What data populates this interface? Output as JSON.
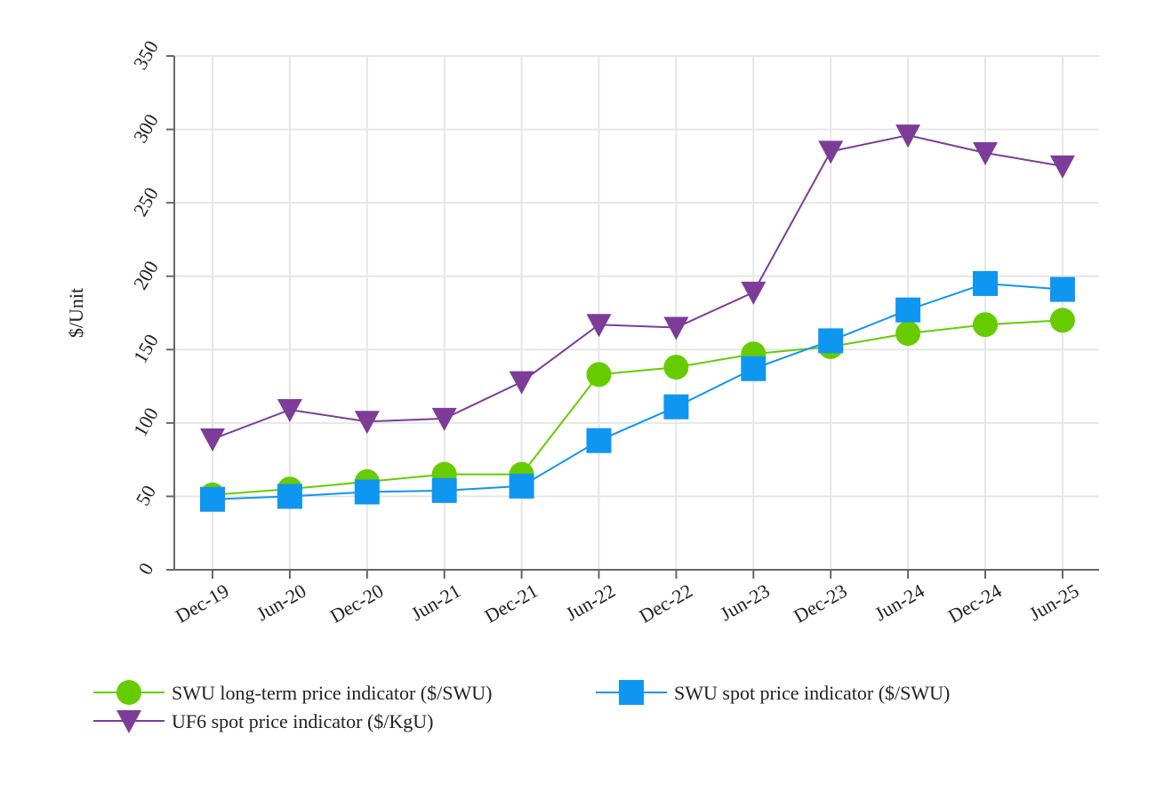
{
  "chart_data": {
    "type": "line",
    "title": "",
    "xlabel": "",
    "ylabel": "$/Unit",
    "ylim": [
      0,
      350
    ],
    "yticks": [
      0,
      50,
      100,
      150,
      200,
      250,
      300,
      350
    ],
    "grid": true,
    "legend_position": "bottom",
    "categories": [
      "Dec-19",
      "Jun-20",
      "Dec-20",
      "Jun-21",
      "Dec-21",
      "Jun-22",
      "Dec-22",
      "Jun-23",
      "Dec-23",
      "Jun-24",
      "Dec-24",
      "Jun-25"
    ],
    "series": [
      {
        "name": "SWU long-term price indicator ($/SWU)",
        "color": "#66cc00",
        "marker": "circle",
        "values": [
          51,
          55,
          60,
          65,
          65,
          133,
          138,
          147,
          152,
          161,
          167,
          170
        ]
      },
      {
        "name": "SWU spot price indicator ($/SWU)",
        "color": "#0f96f0",
        "marker": "square",
        "values": [
          48,
          50,
          53,
          54,
          57,
          88,
          111,
          137,
          156,
          177,
          195,
          191
        ]
      },
      {
        "name": "UF6 spot price indicator ($/KgU)",
        "color": "#7d3c98",
        "marker": "triangle-down",
        "values": [
          89,
          109,
          101,
          103,
          128,
          167,
          165,
          189,
          285,
          296,
          284,
          275
        ]
      }
    ]
  }
}
